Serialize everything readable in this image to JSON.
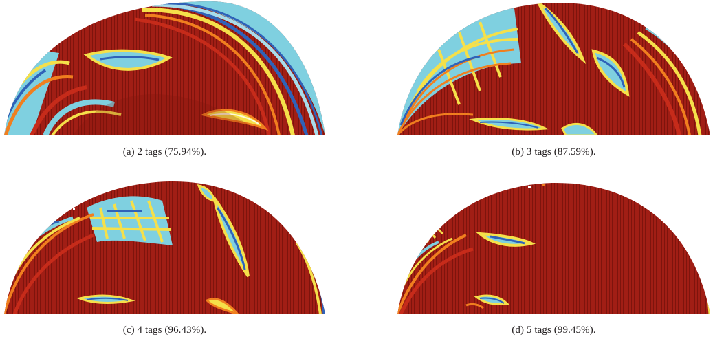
{
  "figure": {
    "panels": [
      {
        "caption": "(a)  2 tags (75.94%)."
      },
      {
        "caption": "(b)  3 tags (87.59%)."
      },
      {
        "caption": "(c)  4 tags (96.43%)."
      },
      {
        "caption": "(d)  5 tags (99.45%)."
      }
    ]
  },
  "colors": {
    "dark_red": "#9a1c14",
    "red": "#c62b1a",
    "orange": "#f07f1f",
    "yellow": "#f5e04a",
    "cyan": "#7fd0e0",
    "light_blue": "#a8dcea",
    "blue": "#2f62b8"
  }
}
